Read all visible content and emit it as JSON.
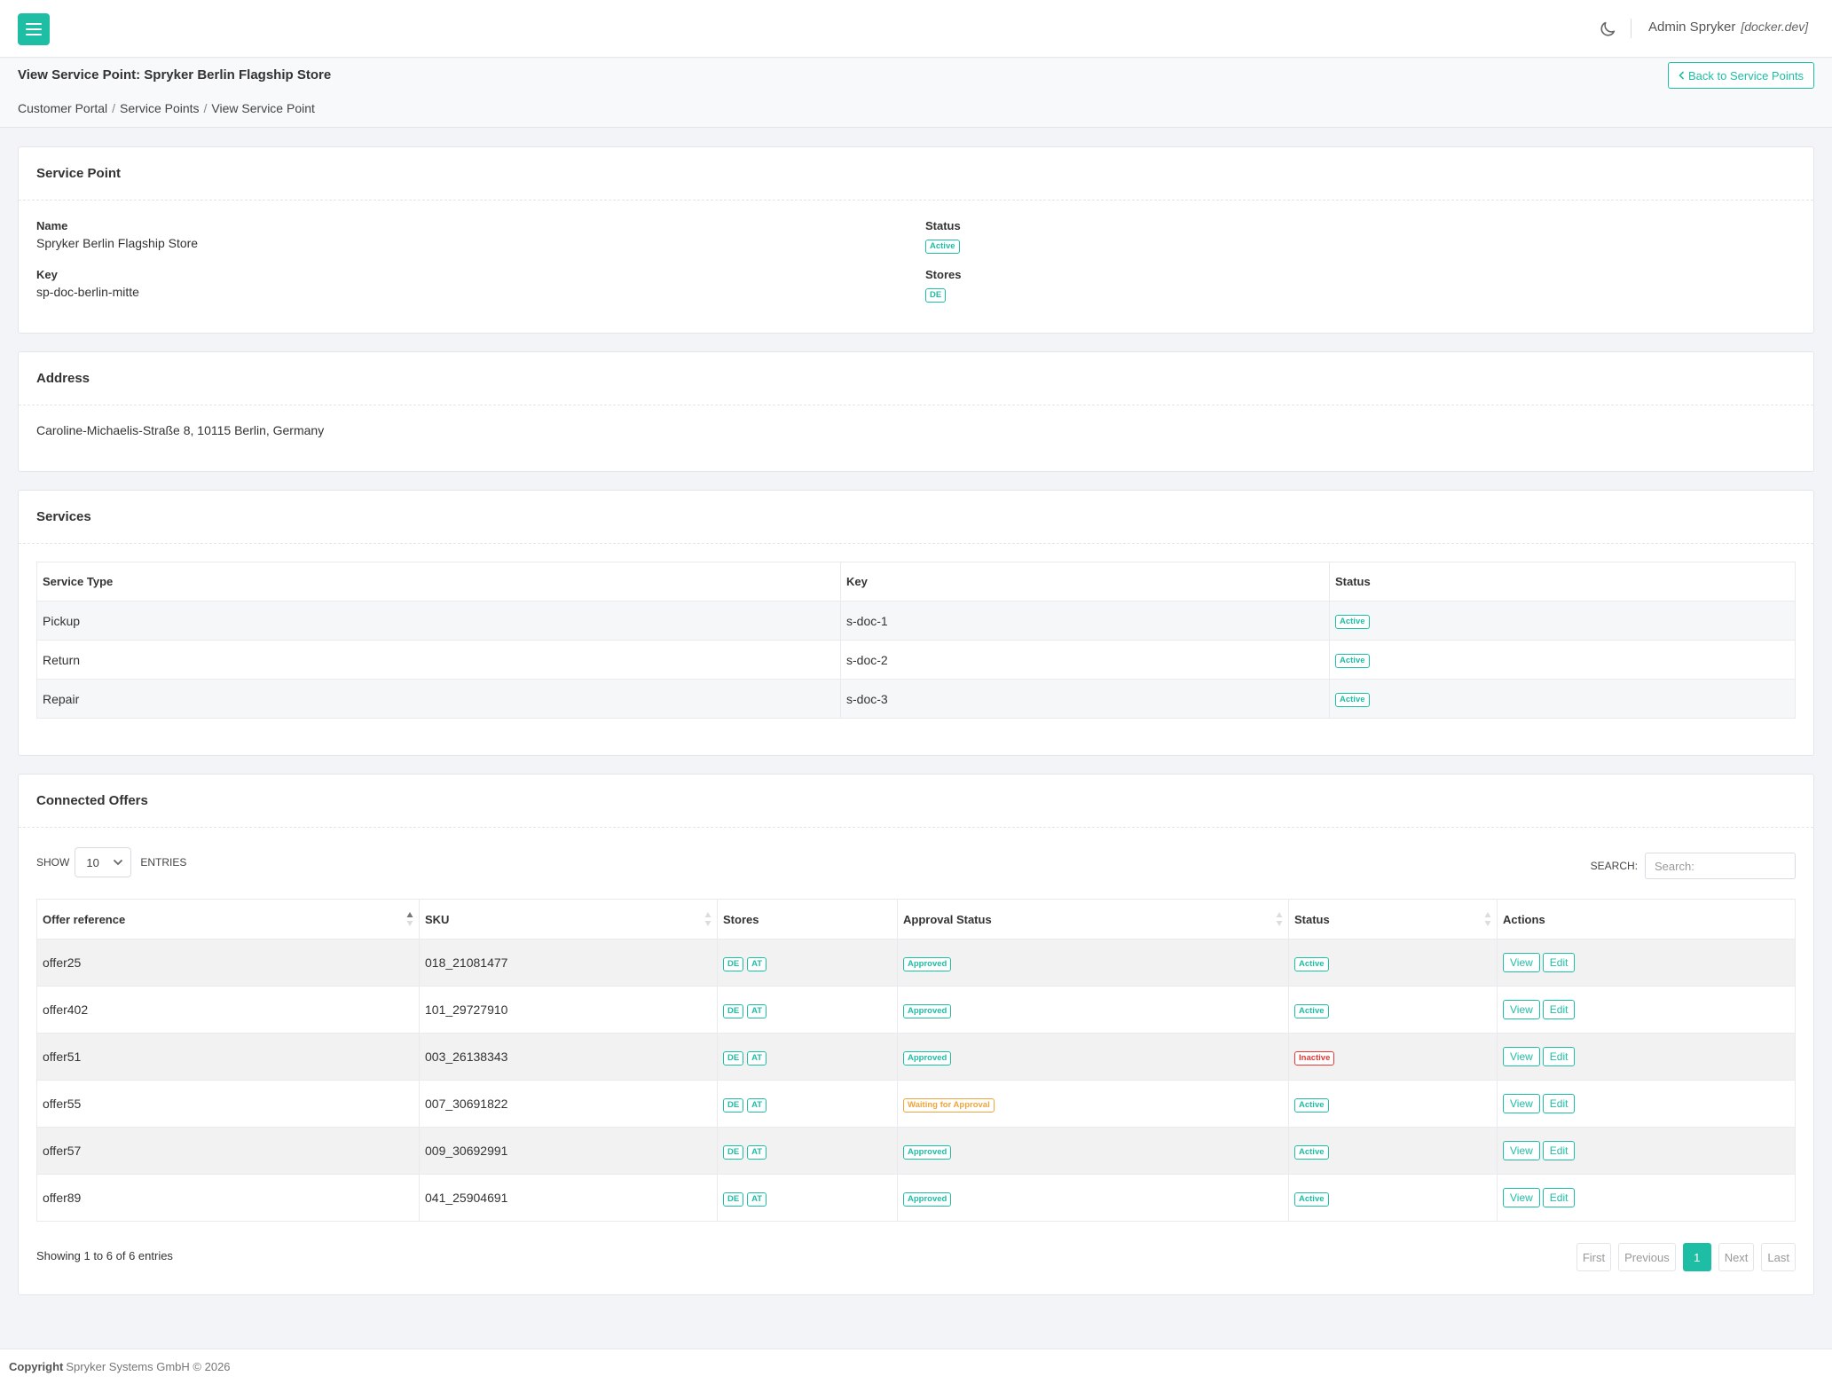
{
  "header": {
    "menu_icon": "hamburger-icon",
    "theme_icon": "moon-icon",
    "user_name": "Admin Spryker",
    "environment": "[docker.dev]"
  },
  "page": {
    "title": "View Service Point: Spryker Berlin Flagship Store",
    "back_label": "Back to Service Points",
    "breadcrumb": [
      "Customer Portal",
      "Service Points",
      "View Service Point"
    ]
  },
  "service_point": {
    "title": "Service Point",
    "name_label": "Name",
    "name_value": "Spryker Berlin Flagship Store",
    "key_label": "Key",
    "key_value": "sp-doc-berlin-mitte",
    "status_label": "Status",
    "status_value": "Active",
    "stores_label": "Stores",
    "stores_value": "DE"
  },
  "address": {
    "title": "Address",
    "value": "Caroline-Michaelis-Straße 8, 10115 Berlin, Germany"
  },
  "services": {
    "title": "Services",
    "columns": [
      "Service Type",
      "Key",
      "Status"
    ],
    "rows": [
      {
        "type": "Pickup",
        "key": "s-doc-1",
        "status": "Active"
      },
      {
        "type": "Return",
        "key": "s-doc-2",
        "status": "Active"
      },
      {
        "type": "Repair",
        "key": "s-doc-3",
        "status": "Active"
      }
    ]
  },
  "offers": {
    "title": "Connected Offers",
    "show_label": "SHOW",
    "entries_label": "ENTRIES",
    "page_size": "10",
    "search_label": "SEARCH:",
    "search_placeholder": "Search:",
    "columns": [
      "Offer reference",
      "SKU",
      "Stores",
      "Approval Status",
      "Status",
      "Actions"
    ],
    "rows": [
      {
        "ref": "offer25",
        "sku": "018_21081477",
        "stores": [
          "DE",
          "AT"
        ],
        "approval": "Approved",
        "status": "Active"
      },
      {
        "ref": "offer402",
        "sku": "101_29727910",
        "stores": [
          "DE",
          "AT"
        ],
        "approval": "Approved",
        "status": "Active"
      },
      {
        "ref": "offer51",
        "sku": "003_26138343",
        "stores": [
          "DE",
          "AT"
        ],
        "approval": "Approved",
        "status": "Inactive"
      },
      {
        "ref": "offer55",
        "sku": "007_30691822",
        "stores": [
          "DE",
          "AT"
        ],
        "approval": "Waiting for Approval",
        "status": "Active"
      },
      {
        "ref": "offer57",
        "sku": "009_30692991",
        "stores": [
          "DE",
          "AT"
        ],
        "approval": "Approved",
        "status": "Active"
      },
      {
        "ref": "offer89",
        "sku": "041_25904691",
        "stores": [
          "DE",
          "AT"
        ],
        "approval": "Approved",
        "status": "Active"
      }
    ],
    "view_label": "View",
    "edit_label": "Edit",
    "showing_text": "Showing 1 to 6 of 6 entries",
    "pagination": {
      "first": "First",
      "previous": "Previous",
      "current": "1",
      "next": "Next",
      "last": "Last"
    }
  },
  "footer": {
    "copyright_label": "Copyright",
    "company": "Spryker Systems GmbH © 2026"
  },
  "colors": {
    "accent": "#1ebea5",
    "inactive": "#e53935",
    "waiting": "#f0a43a"
  }
}
